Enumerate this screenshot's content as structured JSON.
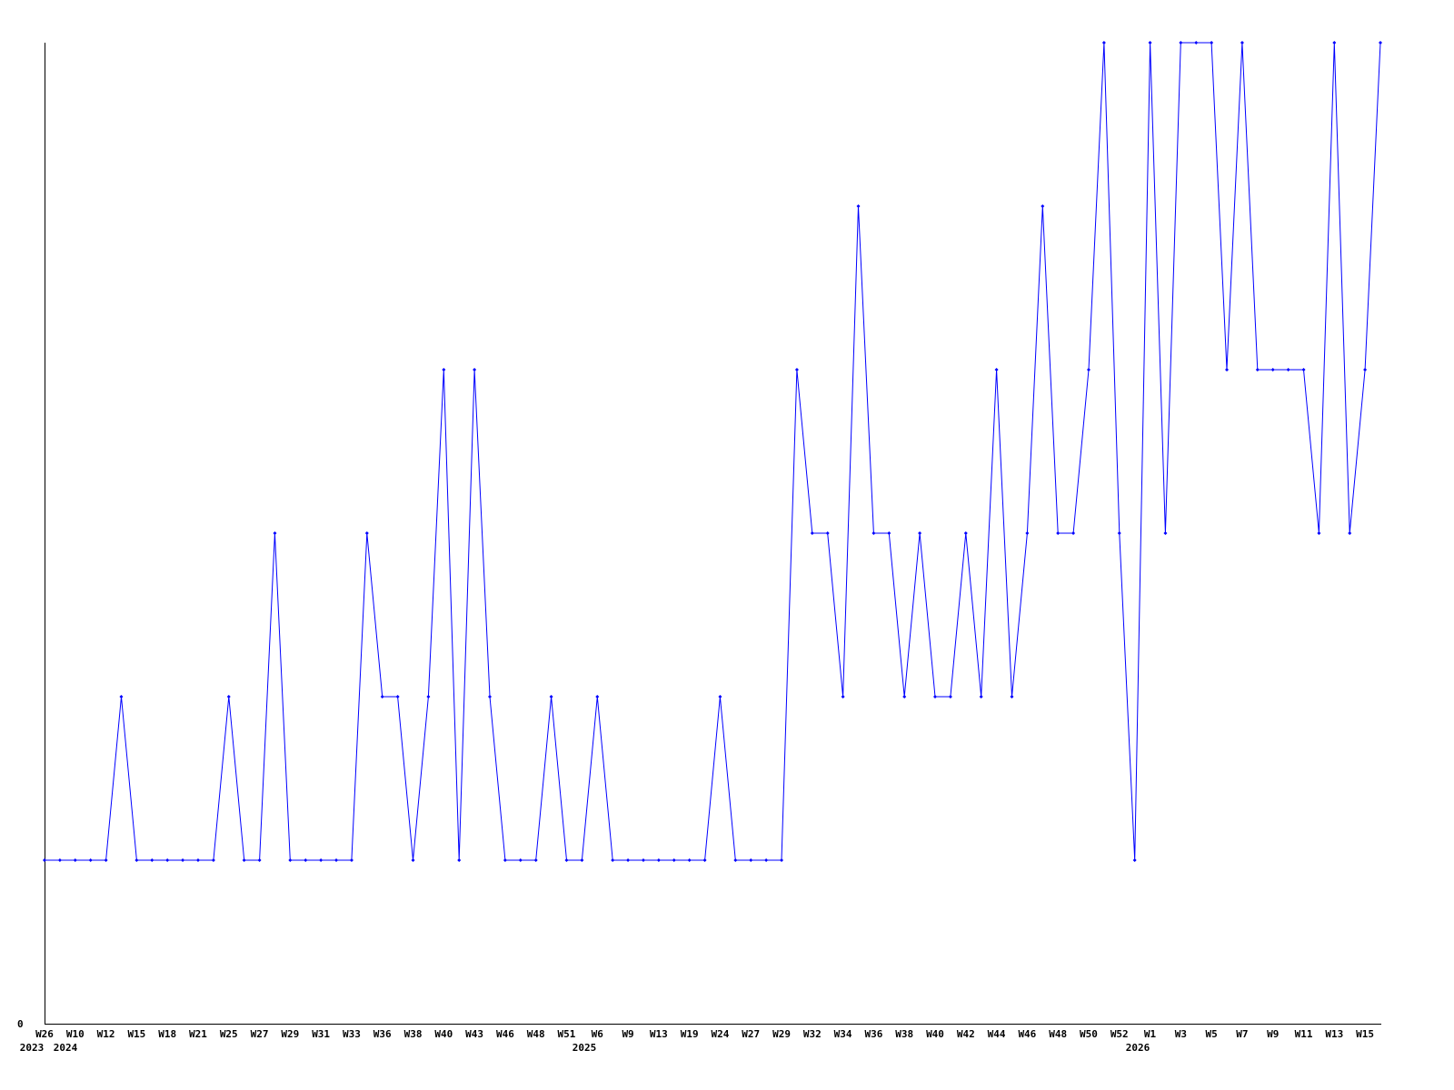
{
  "chart_data": {
    "type": "line",
    "title": "",
    "xlabel": "",
    "ylabel": "",
    "ylim": [
      0,
      6
    ],
    "y_tick_labels": [
      "0"
    ],
    "grid": false,
    "series_color": "#0000ff",
    "x_tick_labels": [
      "W26",
      "W10",
      "W12",
      "W15",
      "W18",
      "W21",
      "W25",
      "W27",
      "W29",
      "W31",
      "W33",
      "W36",
      "W38",
      "W40",
      "W43",
      "W46",
      "W48",
      "W51",
      "W6",
      "W9",
      "W13",
      "W19",
      "W24",
      "W27",
      "W29",
      "W32",
      "W34",
      "W36",
      "W38",
      "W40",
      "W42",
      "W44",
      "W46",
      "W48",
      "W50",
      "W52",
      "W1",
      "W3",
      "W5",
      "W7",
      "W9",
      "W11",
      "W13",
      "W15"
    ],
    "year_labels": [
      "2023",
      "2024",
      "2025",
      "2026"
    ],
    "values": [
      1,
      1,
      1,
      1,
      1,
      2,
      1,
      1,
      1,
      1,
      1,
      1,
      2,
      1,
      1,
      3,
      1,
      1,
      1,
      1,
      1,
      3,
      2,
      2,
      1,
      2,
      4,
      1,
      4,
      2,
      1,
      1,
      1,
      2,
      1,
      1,
      2,
      1,
      1,
      1,
      1,
      1,
      1,
      1,
      2,
      1,
      1,
      1,
      1,
      4,
      3,
      3,
      2,
      5,
      3,
      3,
      2,
      3,
      2,
      2,
      3,
      2,
      4,
      2,
      3,
      5,
      3,
      3,
      4,
      6,
      3,
      1,
      6,
      3,
      6,
      6,
      6,
      4,
      6,
      4,
      4,
      4,
      4,
      3,
      6,
      3,
      4,
      6
    ]
  }
}
